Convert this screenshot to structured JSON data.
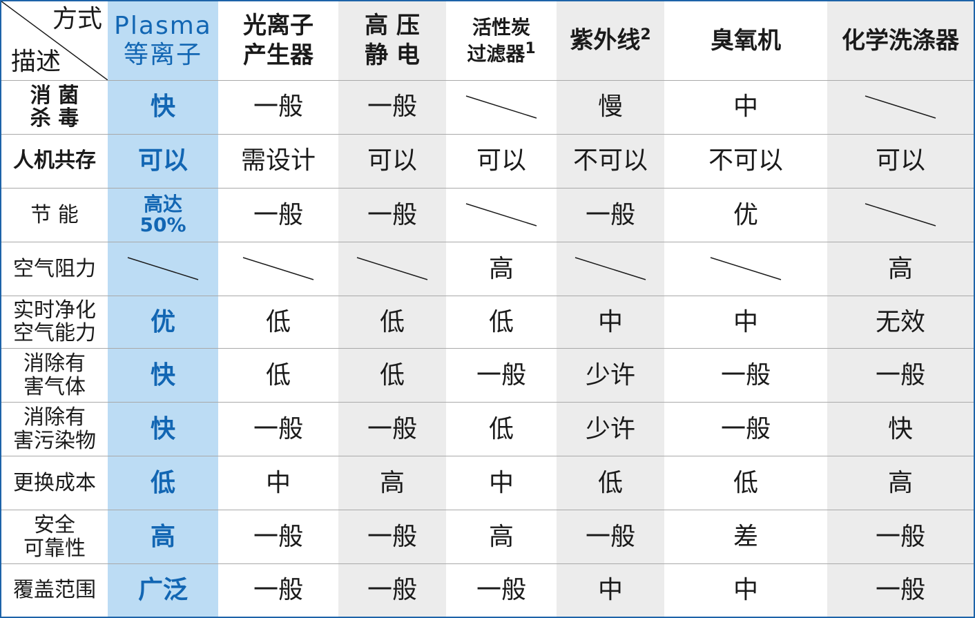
{
  "corner": {
    "top": "方式",
    "bottom": "描述"
  },
  "headers": [
    {
      "line1": "Plasma",
      "line2": "等离子"
    },
    {
      "line1": "光离子",
      "line2": "产生器"
    },
    {
      "line1": "高 压",
      "line2": "静 电"
    },
    {
      "line1": "活性炭",
      "line2": "过滤器",
      "sup": "1"
    },
    {
      "line1": "紫外线",
      "sup": "2"
    },
    {
      "line1": "臭氧机"
    },
    {
      "line1": "化学洗涤器"
    }
  ],
  "rows": [
    {
      "label1": "消  菌",
      "label2": "杀  毒",
      "bold": true,
      "cells": [
        "快",
        "一般",
        "一般",
        "—",
        "慢",
        "中",
        "—"
      ]
    },
    {
      "label1": "人机共存",
      "bold": true,
      "cells": [
        "可以",
        "需设计",
        "可以",
        "可以",
        "不可以",
        "不可以",
        "可以"
      ]
    },
    {
      "label1": "节    能",
      "cells": [
        "高达\n50%",
        "一般",
        "一般",
        "—",
        "一般",
        "优",
        "—"
      ]
    },
    {
      "label1": "空气阻力",
      "cells": [
        "—",
        "—",
        "—",
        "高",
        "—",
        "—",
        "高"
      ]
    },
    {
      "label1": "实时净化",
      "label2": "空气能力",
      "cells": [
        "优",
        "低",
        "低",
        "低",
        "中",
        "中",
        "无效"
      ]
    },
    {
      "label1": "消除有",
      "label2": "害气体",
      "cells": [
        "快",
        "低",
        "低",
        "一般",
        "少许",
        "一般",
        "一般"
      ]
    },
    {
      "label1": "消除有",
      "label2": "害污染物",
      "cells": [
        "快",
        "一般",
        "一般",
        "低",
        "少许",
        "一般",
        "快"
      ]
    },
    {
      "label1": "更换成本",
      "cells": [
        "低",
        "中",
        "高",
        "中",
        "低",
        "低",
        "高"
      ]
    },
    {
      "label1": "安全",
      "label2": "可靠性",
      "cells": [
        "高",
        "一般",
        "一般",
        "高",
        "一般",
        "差",
        "一般"
      ]
    },
    {
      "label1": "覆盖范围",
      "cells": [
        "广泛",
        "一般",
        "一般",
        "一般",
        "中",
        "中",
        "一般"
      ]
    }
  ],
  "colors": {
    "plasma_bg": "#bcdcf4",
    "plasma_text": "#1266b3",
    "shade": "#ececec",
    "border": "#1d63a8"
  }
}
